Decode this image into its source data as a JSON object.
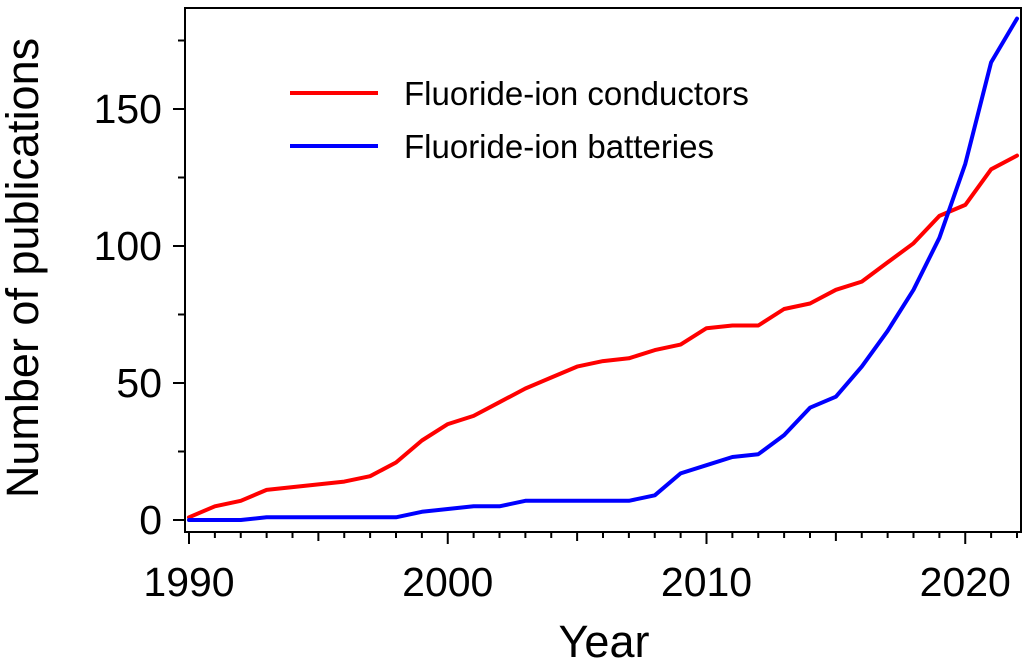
{
  "chart_data": {
    "type": "line",
    "title": "",
    "xlabel": "Year",
    "ylabel": "Number of publications",
    "xlim": [
      1990,
      2022
    ],
    "ylim": [
      0,
      185
    ],
    "xticks": [
      1990,
      2000,
      2010,
      2020
    ],
    "yticks": [
      0,
      50,
      100,
      150
    ],
    "grid": false,
    "legend_position": "top-left",
    "x": [
      1990,
      1991,
      1992,
      1993,
      1994,
      1995,
      1996,
      1997,
      1998,
      1999,
      2000,
      2001,
      2002,
      2003,
      2004,
      2005,
      2006,
      2007,
      2008,
      2009,
      2010,
      2011,
      2012,
      2013,
      2014,
      2015,
      2016,
      2017,
      2018,
      2019,
      2020,
      2021,
      2022
    ],
    "series": [
      {
        "name": "Fluoride-ion conductors",
        "color": "#ff0000",
        "values": [
          1,
          5,
          7,
          11,
          12,
          13,
          14,
          16,
          21,
          29,
          35,
          38,
          43,
          48,
          52,
          56,
          58,
          59,
          62,
          64,
          70,
          71,
          71,
          77,
          79,
          84,
          87,
          94,
          101,
          111,
          115,
          128,
          133
        ]
      },
      {
        "name": "Fluoride-ion batteries",
        "color": "#0000ff",
        "values": [
          0,
          0,
          0,
          1,
          1,
          1,
          1,
          1,
          1,
          3,
          4,
          5,
          5,
          7,
          7,
          7,
          7,
          7,
          9,
          17,
          20,
          23,
          24,
          31,
          41,
          45,
          56,
          69,
          84,
          103,
          130,
          167,
          183
        ]
      }
    ]
  }
}
